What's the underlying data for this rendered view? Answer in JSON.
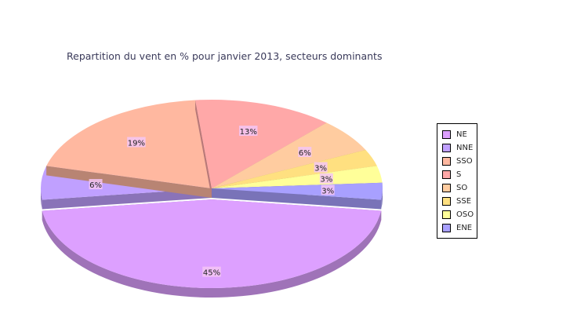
{
  "chart_data": {
    "type": "pie",
    "title": "Repartition du vent en % pour janvier 2013, secteurs dominants",
    "slices": [
      {
        "name": "NE",
        "value": 45,
        "label": "45%",
        "color": "#dda0ff"
      },
      {
        "name": "NNE",
        "value": 6,
        "label": "6%",
        "color": "#c0a0ff"
      },
      {
        "name": "SSO",
        "value": 19,
        "label": "19%",
        "color": "#ffb8a0"
      },
      {
        "name": "S",
        "value": 13,
        "label": "13%",
        "color": "#ffa8a8"
      },
      {
        "name": "SO",
        "value": 6,
        "label": "6%",
        "color": "#ffcca0"
      },
      {
        "name": "SSE",
        "value": 3,
        "label": "3%",
        "color": "#ffe080"
      },
      {
        "name": "OSO",
        "value": 3,
        "label": "3%",
        "color": "#ffff99"
      },
      {
        "name": "ENE",
        "value": 3,
        "label": "3%",
        "color": "#a8a0ff"
      }
    ],
    "legend_position": "right"
  }
}
